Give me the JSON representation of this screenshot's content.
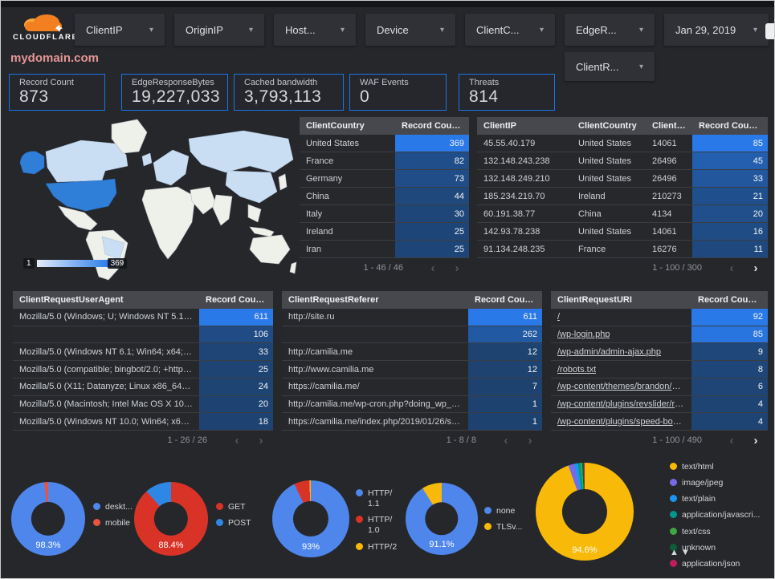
{
  "brand": {
    "name": "CLOUDFLARE"
  },
  "title": "mydomain.com",
  "filters": [
    {
      "label": "ClientIP"
    },
    {
      "label": "OriginIP"
    },
    {
      "label": "Host..."
    },
    {
      "label": "Device"
    },
    {
      "label": "ClientC..."
    },
    {
      "label": "EdgeR..."
    }
  ],
  "date_filter": {
    "label": "Jan 29, 2019"
  },
  "filters_row2": [
    {
      "label": "ClientR..."
    }
  ],
  "scorecards": [
    {
      "label": "Record Count",
      "value": "873"
    },
    {
      "label": "EdgeResponseBytes",
      "value": "19,227,033"
    },
    {
      "label": "Cached bandwidth",
      "value": "3,793,113"
    },
    {
      "label": "WAF Events",
      "value": "0"
    },
    {
      "label": "Threats",
      "value": "814"
    }
  ],
  "map": {
    "legend_min": "1",
    "legend_max": "369"
  },
  "icons": {
    "sort": "▼",
    "chev_left": "‹",
    "chev_right": "›",
    "caret": "▾",
    "pager_up": "▲",
    "pager_down": "▼"
  },
  "colors": {
    "bg": "#26272b",
    "chip": "#2f3136",
    "thead": "#46484e",
    "accent": "#1a73e8",
    "title": "#e59595",
    "heat_lo": "#1c3a5e",
    "heat_hi": "#2979e8",
    "map_land": "#eef0ea",
    "map_shade": "#c9ddf3",
    "map_hot": "#2f7ed8"
  },
  "tables": {
    "country": {
      "columns": [
        "ClientCountry",
        "Record Count"
      ],
      "rows": [
        [
          "United States",
          369
        ],
        [
          "France",
          82
        ],
        [
          "Germany",
          73
        ],
        [
          "China",
          44
        ],
        [
          "Italy",
          30
        ],
        [
          "Ireland",
          25
        ],
        [
          "Iran",
          25
        ]
      ],
      "pagination": {
        "label": "1 - 46 / 46",
        "prev": false,
        "next": false
      }
    },
    "clientip": {
      "columns": [
        "ClientIP",
        "ClientCountry",
        "ClientASN",
        "Record Count"
      ],
      "rows": [
        [
          "45.55.40.179",
          "United States",
          "14061",
          85
        ],
        [
          "132.148.243.238",
          "United States",
          "26496",
          45
        ],
        [
          "132.148.249.210",
          "United States",
          "26496",
          33
        ],
        [
          "185.234.219.70",
          "Ireland",
          "210273",
          21
        ],
        [
          "60.191.38.77",
          "China",
          "4134",
          20
        ],
        [
          "142.93.78.238",
          "United States",
          "14061",
          16
        ],
        [
          "91.134.248.235",
          "France",
          "16276",
          11
        ]
      ],
      "pagination": {
        "label": "1 - 100 / 300",
        "prev": false,
        "next": true
      }
    },
    "useragent": {
      "columns": [
        "ClientRequestUserAgent",
        "Record Count"
      ],
      "rows": [
        [
          "Mozilla/5.0 (Windows; U; Windows NT 5.1; en-U...",
          611
        ],
        [
          "",
          106
        ],
        [
          "Mozilla/5.0 (Windows NT 6.1; Win64; x64; rv:64...",
          33
        ],
        [
          "Mozilla/5.0 (compatible; bingbot/2.0; +http://w...",
          25
        ],
        [
          "Mozilla/5.0 (X11; Datanyze; Linux x86_64) Appl...",
          24
        ],
        [
          "Mozilla/5.0 (Macintosh; Intel Mac OS X 10.11; r...",
          20
        ],
        [
          "Mozilla/5.0 (Windows NT 10.0; Win64; x64) App...",
          18
        ]
      ],
      "pagination": {
        "label": "1 - 26 / 26",
        "prev": false,
        "next": false
      }
    },
    "referer": {
      "columns": [
        "ClientRequestReferer",
        "Record Count"
      ],
      "rows": [
        [
          "http://site.ru",
          611
        ],
        [
          "",
          262
        ],
        [
          "http://camilia.me",
          12
        ],
        [
          "http://www.camilia.me",
          12
        ],
        [
          "https://camilia.me/",
          7
        ],
        [
          "http://camilia.me/wp-cron.php?doing_wp_cron...",
          1
        ],
        [
          "https://camilia.me/index.php/2019/01/26/stor...",
          1
        ]
      ],
      "pagination": {
        "label": "1 - 8 / 8",
        "prev": false,
        "next": false
      }
    },
    "uri": {
      "columns": [
        "ClientRequestURI",
        "Record Count"
      ],
      "rows": [
        [
          "/",
          92
        ],
        [
          "/wp-login.php",
          85
        ],
        [
          "/wp-admin/admin-ajax.php",
          9
        ],
        [
          "/robots.txt",
          8
        ],
        [
          "/wp-content/themes/brandon/plu...",
          6
        ],
        [
          "/wp-content/plugins/revslider/rs-p...",
          4
        ],
        [
          "/wp-content/plugins/speed-booste...",
          4
        ]
      ],
      "pagination": {
        "label": "1 - 100 / 490",
        "prev": false,
        "next": true
      }
    }
  },
  "donuts": [
    {
      "name": "device-type",
      "type": "pie",
      "label_pct": "98.3%",
      "slices": [
        {
          "label": "deskt...",
          "value": 98.3,
          "color": "#4e86ec"
        },
        {
          "label": "mobile",
          "value": 1.7,
          "color": "#e8543f"
        }
      ]
    },
    {
      "name": "http-method",
      "type": "pie",
      "label_pct": "88.4%",
      "slices": [
        {
          "label": "GET",
          "value": 88.4,
          "color": "#d93327"
        },
        {
          "label": "POST",
          "value": 11.6,
          "color": "#2e87e5"
        }
      ]
    },
    {
      "name": "http-version",
      "type": "pie",
      "label_pct": "93%",
      "slices": [
        {
          "label": "HTTP/\n1.1",
          "value": 93,
          "color": "#4e86ec"
        },
        {
          "label": "HTTP/\n1.0",
          "value": 6.4,
          "color": "#d93327"
        },
        {
          "label": "HTTP/2",
          "value": 0.6,
          "color": "#f8b908"
        }
      ]
    },
    {
      "name": "tls-version",
      "type": "pie",
      "label_pct": "91.1%",
      "slices": [
        {
          "label": "none",
          "value": 91.1,
          "color": "#4e86ec"
        },
        {
          "label": "TLSv...",
          "value": 8.9,
          "color": "#f8b908"
        }
      ]
    },
    {
      "name": "content-type",
      "type": "pie",
      "label_pct": "94.6%",
      "slices": [
        {
          "label": "text/html",
          "value": 94.6,
          "color": "#f8b908"
        },
        {
          "label": "image/jpeg",
          "value": 2.0,
          "color": "#756be8"
        },
        {
          "label": "text/plain",
          "value": 1.1,
          "color": "#1a96f0"
        },
        {
          "label": "application/javascri...",
          "value": 0.9,
          "color": "#00978f"
        },
        {
          "label": "text/css",
          "value": 0.6,
          "color": "#3fa73f"
        },
        {
          "label": "unknown",
          "value": 0.5,
          "color": "#0b5e38"
        },
        {
          "label": "application/json",
          "value": 0.3,
          "color": "#c01d5e"
        }
      ]
    }
  ]
}
